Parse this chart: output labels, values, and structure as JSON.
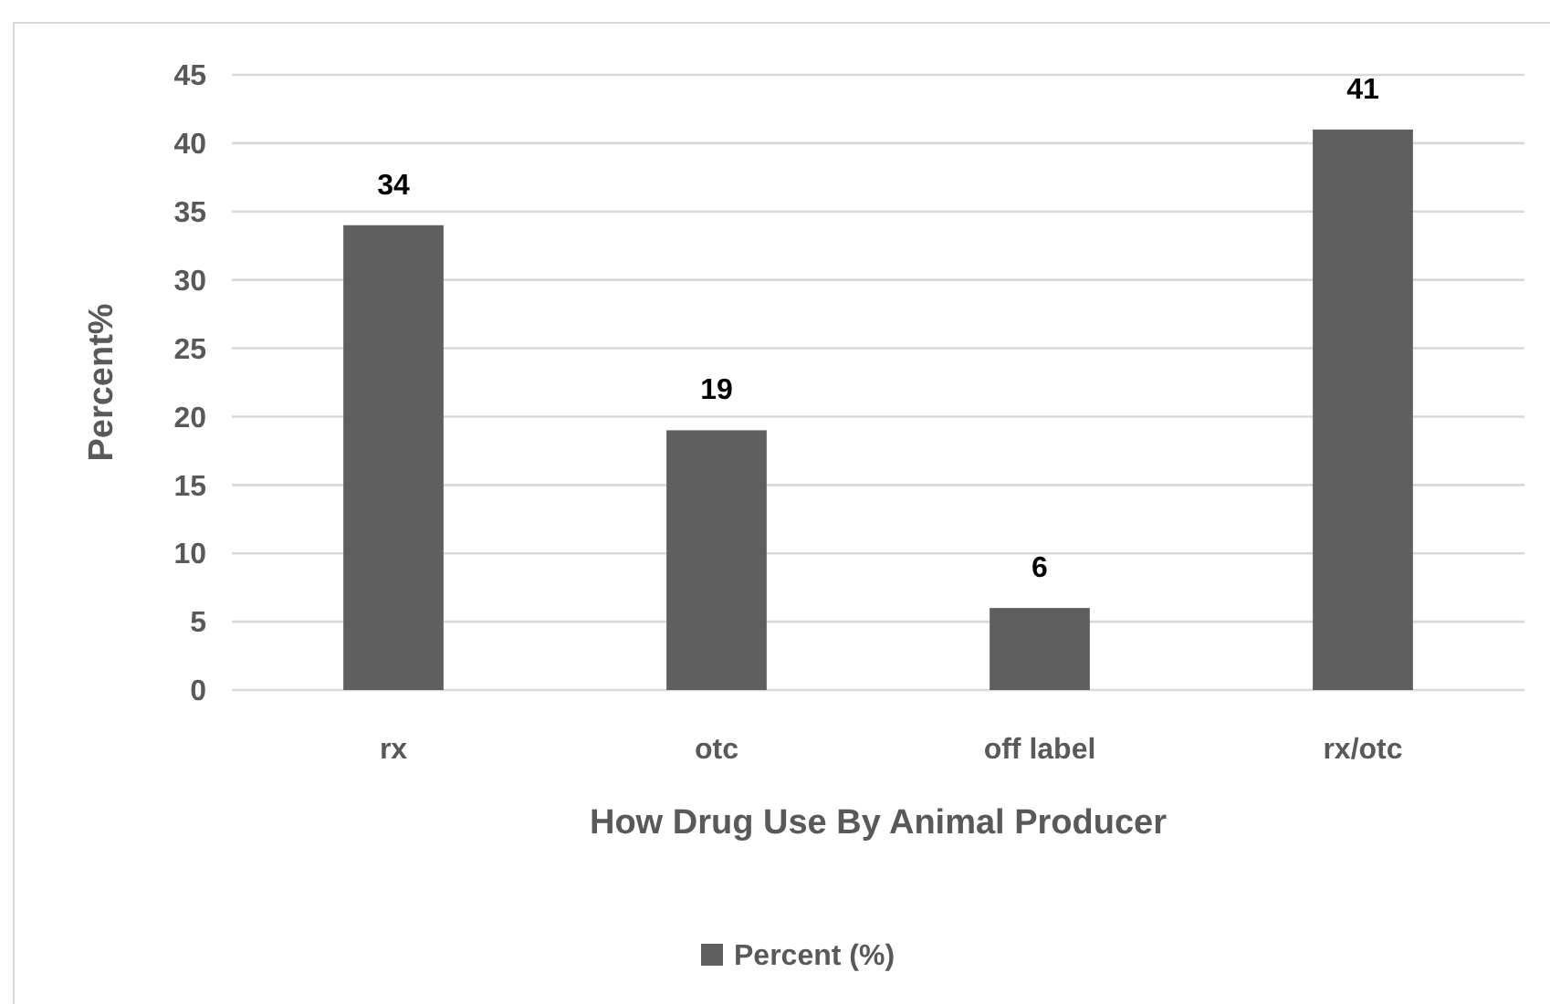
{
  "chart_data": {
    "type": "bar",
    "categories": [
      "rx",
      "otc",
      "off label",
      "rx/otc"
    ],
    "series": [
      {
        "name": "Percent (%)",
        "color": "#5f5f5f",
        "values": [
          34,
          19,
          6,
          41
        ]
      }
    ],
    "xlabel": "How Drug Use By Animal Producer",
    "ylabel": "Percent%",
    "ylim": [
      0,
      45
    ],
    "yticks": [
      0,
      5,
      10,
      15,
      20,
      25,
      30,
      35,
      40,
      45
    ],
    "grid": "y",
    "legend": "bottom",
    "data_labels": true
  }
}
